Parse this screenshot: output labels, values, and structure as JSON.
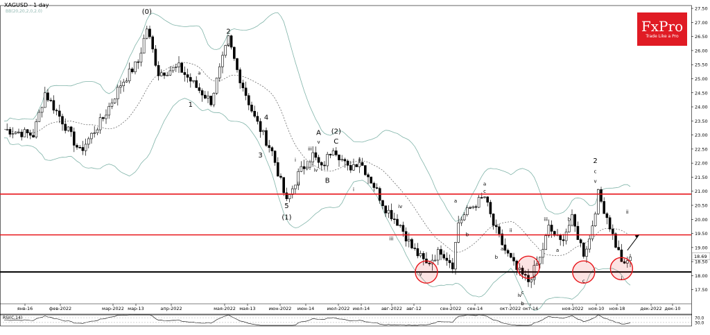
{
  "header": {
    "symbol": "XAGUSD - 1 day",
    "indicator": "BB(20,20,2,0,2.0)",
    "rsi_label": "RSI(C,14)"
  },
  "logo": {
    "brand": "FxPro",
    "tagline": "Trade Like a Pro"
  },
  "colors": {
    "bull_candle": "#ffffff",
    "bear_candle": "#000000",
    "bollinger": "#7fb3a8",
    "sma": "#555555",
    "resistance": "#e8161b",
    "support": "#000000",
    "highlight": "#e8161b",
    "logo_bg": "#e01b24"
  },
  "chart_data": {
    "type": "candlestick",
    "title": "XAGUSD - 1 day",
    "ylim": [
      17.0,
      27.6
    ],
    "price_axis_ticks": [
      "27.50",
      "27.00",
      "26.50",
      "26.00",
      "25.50",
      "25.00",
      "24.50",
      "24.00",
      "23.50",
      "23.00",
      "22.50",
      "22.00",
      "21.50",
      "21.00",
      "20.50",
      "20.00",
      "19.50",
      "19.00",
      "18.50",
      "18.00",
      "17.50"
    ],
    "price_axis_labels": [
      "27.50",
      "27.00",
      "26.50",
      "26.00",
      "25.50",
      "25.00",
      "24.50",
      "24.00",
      "23.50",
      "23.00",
      "22.50",
      "22.00",
      "21.50",
      "21.00",
      "20.50",
      "20.00",
      "19.50",
      "19.00",
      "18.50",
      "18.69",
      "18.13",
      "17.50"
    ],
    "date_axis_labels": [
      "янв-16",
      "фев-2022",
      "мар-2022",
      "мар-13",
      "апр-2022",
      "мая-2022",
      "мая-13",
      "июн-2022",
      "июн-14",
      "июл-2022",
      "июл-14",
      "авг-2022",
      "авг-12",
      "сен-2022",
      "сен-14",
      "окт-2022",
      "окт-14",
      "ноя-2022",
      "ноя-10",
      "ноя-18",
      "дек-2022",
      "дек-10"
    ],
    "horizontal_levels": [
      {
        "price": 20.9,
        "kind": "resistance"
      },
      {
        "price": 19.45,
        "kind": "resistance"
      },
      {
        "price": 18.13,
        "kind": "support"
      }
    ],
    "last_price": 18.69,
    "wave_labels": [
      {
        "text": "(0)",
        "date_index": 49,
        "price": 27.3
      },
      {
        "text": "2",
        "date_index": 77,
        "price": 26.6
      },
      {
        "text": "c",
        "date_index": 77,
        "price": 26.15
      },
      {
        "text": "1",
        "date_index": 64,
        "price": 24.0
      },
      {
        "text": "a",
        "date_index": 67,
        "price": 25.15
      },
      {
        "text": "b",
        "date_index": 71,
        "price": 24.1
      },
      {
        "text": "4",
        "date_index": 90,
        "price": 23.55
      },
      {
        "text": "3",
        "date_index": 88,
        "price": 22.2
      },
      {
        "text": "5",
        "date_index": 97,
        "price": 20.4
      },
      {
        "text": "(1)",
        "date_index": 97,
        "price": 20.0
      },
      {
        "text": "A",
        "date_index": 108,
        "price": 23.0
      },
      {
        "text": "v",
        "date_index": 108,
        "price": 22.7
      },
      {
        "text": "(2)",
        "date_index": 114,
        "price": 23.05
      },
      {
        "text": "C",
        "date_index": 114,
        "price": 22.7
      },
      {
        "text": "B",
        "date_index": 111,
        "price": 21.3
      },
      {
        "text": "iii",
        "date_index": 105,
        "price": 22.45
      },
      {
        "text": "i",
        "date_index": 100,
        "price": 22.05
      },
      {
        "text": "iv",
        "date_index": 107,
        "price": 21.7
      },
      {
        "text": "ii",
        "date_index": 101,
        "price": 21.2
      },
      {
        "text": "ii",
        "date_index": 122,
        "price": 22.05
      },
      {
        "text": "i",
        "date_index": 120,
        "price": 21.0
      },
      {
        "text": "iv",
        "date_index": 136,
        "price": 20.4
      },
      {
        "text": "iii",
        "date_index": 133,
        "price": 19.25
      },
      {
        "text": "v",
        "date_index": 143,
        "price": 18.0
      },
      {
        "text": "a",
        "date_index": 155,
        "price": 20.6
      },
      {
        "text": "b",
        "date_index": 159,
        "price": 19.4
      },
      {
        "text": "a",
        "date_index": 165,
        "price": 21.2
      },
      {
        "text": "c",
        "date_index": 165,
        "price": 20.95
      },
      {
        "text": "ii",
        "date_index": 174,
        "price": 19.55
      },
      {
        "text": "a",
        "date_index": 171,
        "price": 18.9
      },
      {
        "text": "b",
        "date_index": 169,
        "price": 18.6
      },
      {
        "text": "i",
        "date_index": 183,
        "price": 18.55
      },
      {
        "text": "iii",
        "date_index": 186,
        "price": 19.95
      },
      {
        "text": "b",
        "date_index": 194,
        "price": 19.95
      },
      {
        "text": "a",
        "date_index": 190,
        "price": 18.85
      },
      {
        "text": "ii",
        "date_index": 182,
        "price": 17.9
      },
      {
        "text": "iv",
        "date_index": 177,
        "price": 17.25
      },
      {
        "text": "c",
        "date_index": 178,
        "price": 17.35
      },
      {
        "text": "b",
        "date_index": 178,
        "price": 16.95
      },
      {
        "text": "c",
        "date_index": 199,
        "price": 17.75
      },
      {
        "text": "2",
        "date_index": 203,
        "price": 22.0
      },
      {
        "text": "c",
        "date_index": 203,
        "price": 21.65
      },
      {
        "text": "v",
        "date_index": 203,
        "price": 21.3
      },
      {
        "text": "ii",
        "date_index": 214,
        "price": 20.2
      },
      {
        "text": "i",
        "date_index": 212,
        "price": 17.85
      }
    ],
    "highlight_circles": [
      {
        "date_index": 145,
        "price": 18.13
      },
      {
        "date_index": 180,
        "price": 18.3
      },
      {
        "date_index": 199,
        "price": 18.13
      },
      {
        "date_index": 212,
        "price": 18.25
      }
    ],
    "forecast_arrow": {
      "from": [
        214,
        18.9
      ],
      "to": [
        218,
        19.45
      ]
    },
    "rsi": {
      "ticks": [
        "70.0",
        "30.0"
      ]
    }
  }
}
